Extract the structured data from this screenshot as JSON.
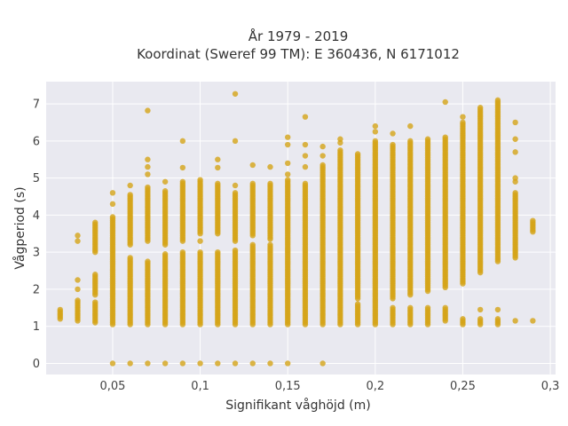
{
  "chart_data": {
    "type": "scatter",
    "title_lines": [
      "År 1979 - 2019",
      "Koordinat (Sweref 99 TM): E 360436, N 6171012"
    ],
    "xlabel": "Signifikant våghöjd (m)",
    "ylabel": "Vågperiod (s)",
    "xlim": [
      0.012,
      0.303
    ],
    "ylim": [
      -0.3,
      7.6
    ],
    "x_ticks": [
      {
        "value": 0.05,
        "label": "0,05"
      },
      {
        "value": 0.1,
        "label": "0,1"
      },
      {
        "value": 0.15,
        "label": "0,15"
      },
      {
        "value": 0.2,
        "label": "0,2"
      },
      {
        "value": 0.25,
        "label": "0,25"
      },
      {
        "value": 0.3,
        "label": "0,3"
      }
    ],
    "y_ticks": [
      {
        "value": 0,
        "label": "0"
      },
      {
        "value": 1,
        "label": "1"
      },
      {
        "value": 2,
        "label": "2"
      },
      {
        "value": 3,
        "label": "3"
      },
      {
        "value": 4,
        "label": "4"
      },
      {
        "value": 5,
        "label": "5"
      },
      {
        "value": 6,
        "label": "6"
      },
      {
        "value": 7,
        "label": "7"
      }
    ],
    "grid": true,
    "background_color": "#e9e9f0",
    "marker_color": "#d4a418",
    "columns": [
      {
        "x": 0.02,
        "segments": [
          [
            1.2,
            1.45
          ]
        ],
        "points": []
      },
      {
        "x": 0.03,
        "segments": [
          [
            1.15,
            1.7
          ]
        ],
        "points": [
          2.0,
          2.25,
          3.3,
          3.45
        ]
      },
      {
        "x": 0.04,
        "segments": [
          [
            1.1,
            1.65
          ],
          [
            1.85,
            2.4
          ],
          [
            3.0,
            3.8
          ]
        ],
        "points": []
      },
      {
        "x": 0.05,
        "segments": [
          [
            1.05,
            3.95
          ]
        ],
        "points": [
          0,
          4.3,
          4.6
        ]
      },
      {
        "x": 0.06,
        "segments": [
          [
            1.05,
            2.85
          ],
          [
            3.2,
            4.55
          ]
        ],
        "points": [
          0,
          4.8
        ]
      },
      {
        "x": 0.07,
        "segments": [
          [
            1.05,
            2.75
          ],
          [
            3.3,
            4.75
          ]
        ],
        "points": [
          0,
          5.1,
          5.3,
          5.5,
          6.82
        ]
      },
      {
        "x": 0.08,
        "segments": [
          [
            1.05,
            2.95
          ],
          [
            3.2,
            4.65
          ]
        ],
        "points": [
          0,
          4.9
        ]
      },
      {
        "x": 0.09,
        "segments": [
          [
            1.05,
            3.0
          ],
          [
            3.3,
            4.9
          ]
        ],
        "points": [
          0,
          5.28,
          6.0
        ]
      },
      {
        "x": 0.1,
        "segments": [
          [
            1.05,
            3.0
          ],
          [
            3.5,
            4.95
          ]
        ],
        "points": [
          0,
          3.3
        ]
      },
      {
        "x": 0.11,
        "segments": [
          [
            1.05,
            3.0
          ],
          [
            3.5,
            4.85
          ]
        ],
        "points": [
          0,
          5.28,
          5.5
        ]
      },
      {
        "x": 0.12,
        "segments": [
          [
            1.05,
            3.05
          ],
          [
            3.3,
            4.6
          ]
        ],
        "points": [
          0,
          4.8,
          6.0,
          7.27
        ]
      },
      {
        "x": 0.13,
        "segments": [
          [
            1.05,
            3.2
          ],
          [
            3.45,
            4.85
          ]
        ],
        "points": [
          0,
          5.35
        ]
      },
      {
        "x": 0.14,
        "segments": [
          [
            1.05,
            3.2
          ],
          [
            3.35,
            4.85
          ]
        ],
        "points": [
          0,
          5.3
        ]
      },
      {
        "x": 0.15,
        "segments": [
          [
            1.05,
            4.95
          ]
        ],
        "points": [
          0,
          5.1,
          5.4,
          5.9,
          6.1
        ]
      },
      {
        "x": 0.16,
        "segments": [
          [
            1.05,
            4.85
          ]
        ],
        "points": [
          5.3,
          5.6,
          5.9,
          6.65
        ]
      },
      {
        "x": 0.17,
        "segments": [
          [
            1.05,
            5.35
          ]
        ],
        "points": [
          0,
          5.6,
          5.85
        ]
      },
      {
        "x": 0.18,
        "segments": [
          [
            1.05,
            5.75
          ]
        ],
        "points": [
          5.95,
          6.05
        ]
      },
      {
        "x": 0.19,
        "segments": [
          [
            1.05,
            1.6
          ],
          [
            1.75,
            5.65
          ]
        ],
        "points": []
      },
      {
        "x": 0.2,
        "segments": [
          [
            1.05,
            6.0
          ]
        ],
        "points": [
          6.25,
          6.4
        ]
      },
      {
        "x": 0.21,
        "segments": [
          [
            1.05,
            1.5
          ],
          [
            1.75,
            5.9
          ]
        ],
        "points": [
          6.2
        ]
      },
      {
        "x": 0.22,
        "segments": [
          [
            1.05,
            1.5
          ],
          [
            1.85,
            6.0
          ]
        ],
        "points": [
          6.4
        ]
      },
      {
        "x": 0.23,
        "segments": [
          [
            1.05,
            1.5
          ],
          [
            1.95,
            6.05
          ]
        ],
        "points": []
      },
      {
        "x": 0.24,
        "segments": [
          [
            1.15,
            1.5
          ],
          [
            2.05,
            6.1
          ]
        ],
        "points": [
          7.05
        ]
      },
      {
        "x": 0.25,
        "segments": [
          [
            1.05,
            1.2
          ],
          [
            2.15,
            6.5
          ]
        ],
        "points": [
          6.65
        ]
      },
      {
        "x": 0.26,
        "segments": [
          [
            1.05,
            1.2
          ],
          [
            2.45,
            6.9
          ]
        ],
        "points": [
          1.45
        ]
      },
      {
        "x": 0.27,
        "segments": [
          [
            1.05,
            1.2
          ],
          [
            2.75,
            7.1
          ]
        ],
        "points": [
          1.45
        ]
      },
      {
        "x": 0.28,
        "segments": [
          [
            2.85,
            4.6
          ]
        ],
        "points": [
          1.15,
          4.9,
          5.0,
          5.7,
          6.05,
          6.5
        ]
      },
      {
        "x": 0.29,
        "segments": [
          [
            3.55,
            3.85
          ]
        ],
        "points": [
          1.15
        ]
      }
    ]
  }
}
